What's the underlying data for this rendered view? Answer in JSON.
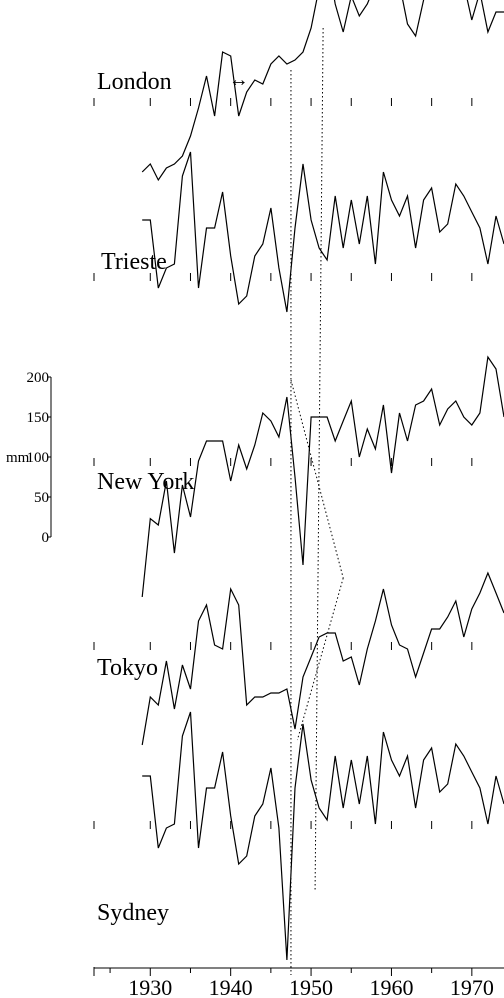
{
  "chart_data": {
    "type": "line",
    "title": "",
    "xlabel": "",
    "ylabel": "",
    "x_ticks": [
      1930,
      1940,
      1950,
      1960,
      1970
    ],
    "x_range": [
      1923,
      1974
    ],
    "scale_bar": {
      "unit": "mm",
      "ticks": [
        0,
        50,
        100,
        150,
        200
      ],
      "tick_labels": [
        "0",
        "50",
        "100",
        "150",
        "200"
      ]
    },
    "marker_symbol": "↔",
    "x": [
      1929,
      1930,
      1931,
      1932,
      1933,
      1934,
      1935,
      1936,
      1937,
      1938,
      1939,
      1940,
      1941,
      1942,
      1943,
      1944,
      1945,
      1946,
      1947,
      1948,
      1949,
      1950,
      1951,
      1952,
      1953,
      1954,
      1955,
      1956,
      1957,
      1958,
      1959,
      1960,
      1961,
      1962,
      1963,
      1964,
      1965,
      1966,
      1967,
      1968,
      1969,
      1970,
      1971,
      1972,
      1973,
      1974
    ],
    "series": [
      {
        "name": "London",
        "values": [
          10,
          20,
          0,
          15,
          20,
          30,
          55,
          90,
          130,
          80,
          160,
          155,
          80,
          110,
          125,
          120,
          145,
          155,
          145,
          150,
          160,
          190,
          240,
          280,
          220,
          185,
          230,
          205,
          220,
          245,
          230,
          235,
          245,
          195,
          180,
          225,
          255,
          330,
          260,
          245,
          245,
          200,
          235,
          185,
          210,
          210
        ]
      },
      {
        "name": "Trieste",
        "values": [
          125,
          125,
          40,
          65,
          70,
          180,
          210,
          40,
          115,
          115,
          160,
          80,
          20,
          30,
          80,
          95,
          140,
          65,
          10,
          115,
          195,
          125,
          90,
          75,
          155,
          90,
          150,
          95,
          155,
          70,
          185,
          150,
          130,
          155,
          90,
          150,
          165,
          110,
          120,
          170,
          155,
          135,
          115,
          70,
          130,
          95
        ]
      },
      {
        "name": "New York",
        "values": [
          0,
          98,
          90,
          145,
          55,
          140,
          100,
          170,
          195,
          195,
          195,
          145,
          190,
          160,
          190,
          230,
          220,
          200,
          250,
          150,
          40,
          225,
          225,
          225,
          195,
          220,
          245,
          175,
          210,
          185,
          240,
          155,
          230,
          195,
          240,
          245,
          260,
          215,
          235,
          245,
          225,
          215,
          230,
          300,
          285,
          225
        ]
      },
      {
        "name": "Tokyo",
        "values": [
          0,
          60,
          50,
          105,
          45,
          100,
          70,
          155,
          175,
          125,
          120,
          195,
          175,
          50,
          60,
          60,
          65,
          65,
          70,
          20,
          85,
          110,
          135,
          140,
          140,
          105,
          110,
          75,
          120,
          155,
          195,
          150,
          125,
          120,
          85,
          115,
          145,
          145,
          160,
          180,
          135,
          170,
          190,
          215,
          190,
          165
        ]
      },
      {
        "name": "Sydney",
        "values": [
          130,
          130,
          40,
          65,
          70,
          180,
          210,
          40,
          115,
          115,
          160,
          80,
          20,
          30,
          80,
          95,
          140,
          65,
          -100,
          115,
          195,
          125,
          90,
          75,
          155,
          90,
          150,
          95,
          155,
          70,
          185,
          150,
          130,
          155,
          90,
          150,
          165,
          110,
          120,
          170,
          155,
          135,
          115,
          70,
          130,
          95
        ]
      }
    ]
  }
}
